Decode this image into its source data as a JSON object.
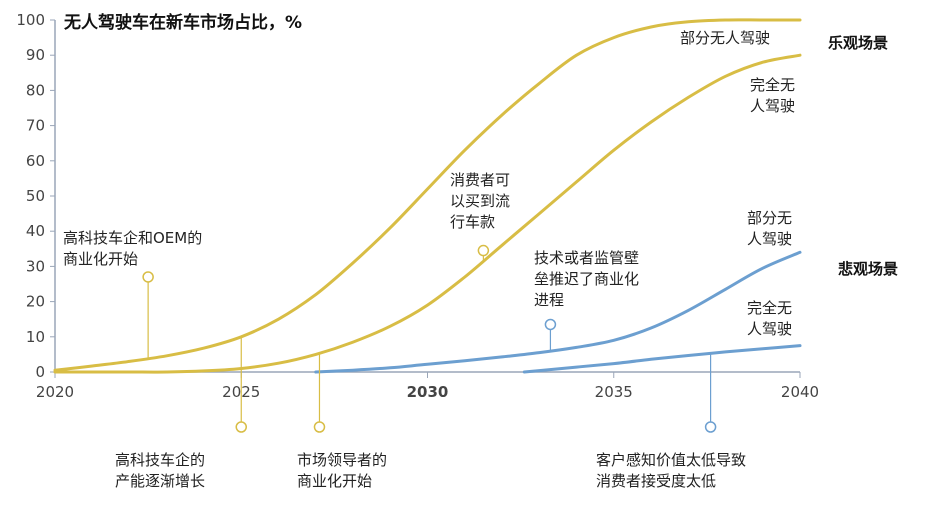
{
  "chart_data": {
    "type": "line",
    "title": "无人驾驶车在新车市场占比，%",
    "xlabel": "",
    "ylabel": "",
    "xlim": [
      2020,
      2040
    ],
    "ylim": [
      0,
      100
    ],
    "y_ticks": [
      "0",
      "10",
      "20",
      "30",
      "40",
      "50",
      "60",
      "70",
      "80",
      "90",
      "100"
    ],
    "x_ticks": [
      "2020",
      "2025",
      "2030",
      "2035",
      "2040"
    ],
    "grid": false,
    "colors": {
      "optimistic": "#d8bd45",
      "pessimistic": "#6c9fd0",
      "frame": "#9aa6b8"
    },
    "groups": [
      {
        "label": "乐观场景",
        "color": "#d8bd45"
      },
      {
        "label": "悲观场景",
        "color": "#6c9fd0"
      }
    ],
    "series": [
      {
        "name": "部分无人驾驶",
        "group": "乐观场景",
        "x": [
          2020,
          2021,
          2022,
          2023,
          2024,
          2025,
          2026,
          2027,
          2028,
          2029,
          2030,
          2031,
          2032,
          2033,
          2034,
          2035,
          2036,
          2037,
          2038,
          2039,
          2040
        ],
        "y": [
          0.5,
          1.7,
          3,
          4.6,
          6.8,
          10,
          15,
          22,
          31,
          41,
          52,
          63,
          73,
          82,
          90,
          95,
          98,
          99.5,
          100,
          100,
          100
        ]
      },
      {
        "name": "完全无人驾驶",
        "group": "乐观场景",
        "x": [
          2020,
          2021,
          2022,
          2023,
          2024,
          2025,
          2026,
          2027,
          2028,
          2029,
          2030,
          2031,
          2032,
          2033,
          2034,
          2035,
          2036,
          2037,
          2038,
          2039,
          2040
        ],
        "y": [
          0,
          0,
          0,
          0,
          0.3,
          1,
          2.5,
          5,
          8.5,
          13,
          19,
          27,
          36,
          45,
          54,
          63,
          71,
          78,
          84,
          88,
          90
        ]
      },
      {
        "name": "部分无人驾驶",
        "group": "悲观场景",
        "x": [
          2027,
          2028,
          2029,
          2030,
          2031,
          2032,
          2033,
          2034,
          2035,
          2036,
          2037,
          2038,
          2039,
          2040
        ],
        "y": [
          0,
          0.5,
          1.2,
          2.2,
          3.2,
          4.3,
          5.5,
          7,
          9,
          12.5,
          17.5,
          23.5,
          29.5,
          34
        ]
      },
      {
        "name": "完全无人驾驶",
        "group": "悲观场景",
        "x": [
          2032.6,
          2033,
          2034,
          2035,
          2036,
          2037,
          2038,
          2039,
          2040
        ],
        "y": [
          0,
          0.4,
          1.4,
          2.4,
          3.6,
          4.7,
          5.7,
          6.6,
          7.5
        ]
      }
    ],
    "series_labels": [
      {
        "lines": [
          "部分无人驾驶"
        ]
      },
      {
        "lines": [
          "完全无",
          "人驾驶"
        ]
      },
      {
        "lines": [
          "部分无",
          "人驾驶"
        ]
      },
      {
        "lines": [
          "完全无",
          "人驾驶"
        ]
      }
    ],
    "annotations": [
      {
        "lines": [
          "高科技车企和OEM的",
          "商业化开始"
        ],
        "x": 2022.5,
        "y": 27,
        "color": "#d8bd45"
      },
      {
        "lines": [
          "消费者可",
          "以买到流",
          "行车款"
        ],
        "x": 2031.5,
        "y": 34.5,
        "color": "#d8bd45"
      },
      {
        "lines": [
          "技术或者监管壁",
          "垒推迟了商业化",
          "进程"
        ],
        "x": 2033.3,
        "y": 13.5,
        "color": "#6c9fd0"
      },
      {
        "lines": [
          "高科技车企的",
          "产能逐渐增长"
        ],
        "x": 2025,
        "color": "#d8bd45"
      },
      {
        "lines": [
          "市场领导者的",
          "商业化开始"
        ],
        "x": 2027.1,
        "color": "#d8bd45"
      },
      {
        "lines": [
          "客户感知价值太低导致",
          "消费者接受度太低"
        ],
        "x": 2037.6,
        "color": "#6c9fd0"
      }
    ]
  }
}
